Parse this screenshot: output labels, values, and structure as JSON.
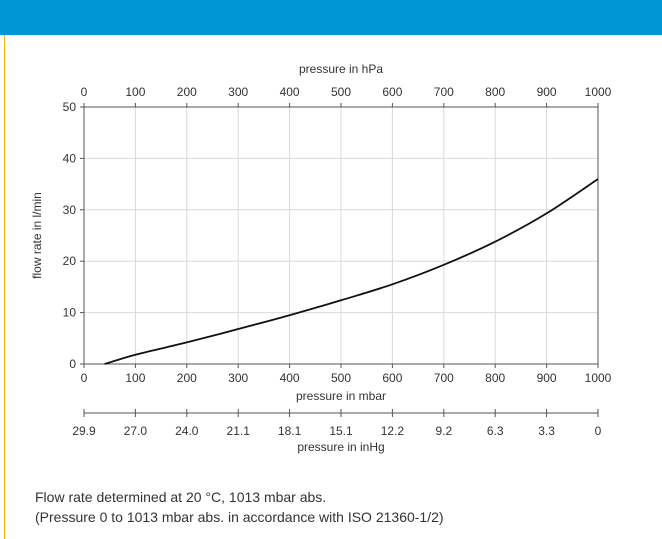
{
  "colors": {
    "header": "#0096D6",
    "accent_line": "#F5B400",
    "curve": "#111111",
    "grid": "#d9d9d9",
    "axis": "#555555",
    "text": "#333333"
  },
  "chart_data": {
    "type": "line",
    "x": [
      40,
      100,
      200,
      300,
      400,
      500,
      600,
      700,
      800,
      900,
      1000
    ],
    "series": [
      {
        "values": [
          0,
          1.8,
          4.2,
          6.8,
          9.5,
          12.4,
          15.5,
          19.3,
          23.8,
          29.3,
          36.0
        ]
      }
    ],
    "xlabel": "pressure in mbar",
    "ylabel": "flow rate in l/min",
    "xlim": [
      0,
      1000
    ],
    "ylim": [
      0,
      50
    ],
    "x_ticks": [
      "0",
      "100",
      "200",
      "300",
      "400",
      "500",
      "600",
      "700",
      "800",
      "900",
      "1000"
    ],
    "y_ticks": [
      "0",
      "10",
      "20",
      "30",
      "40",
      "50"
    ],
    "grid": true,
    "top_axis": {
      "label": "pressure in hPa",
      "ticks": [
        "0",
        "100",
        "200",
        "300",
        "400",
        "500",
        "600",
        "700",
        "800",
        "900",
        "1000"
      ]
    },
    "bottom_axis": {
      "label": "pressure in inHg",
      "ticks": [
        "29.9",
        "27.0",
        "24.0",
        "21.1",
        "18.1",
        "15.1",
        "12.2",
        "9.2",
        "6.3",
        "3.3",
        "0"
      ]
    }
  },
  "footnote": {
    "line1": "Flow rate determined at 20 °C, 1013 mbar abs.",
    "line2": "(Pressure 0 to 1013 mbar abs. in accordance with ISO 21360-1/2)"
  }
}
